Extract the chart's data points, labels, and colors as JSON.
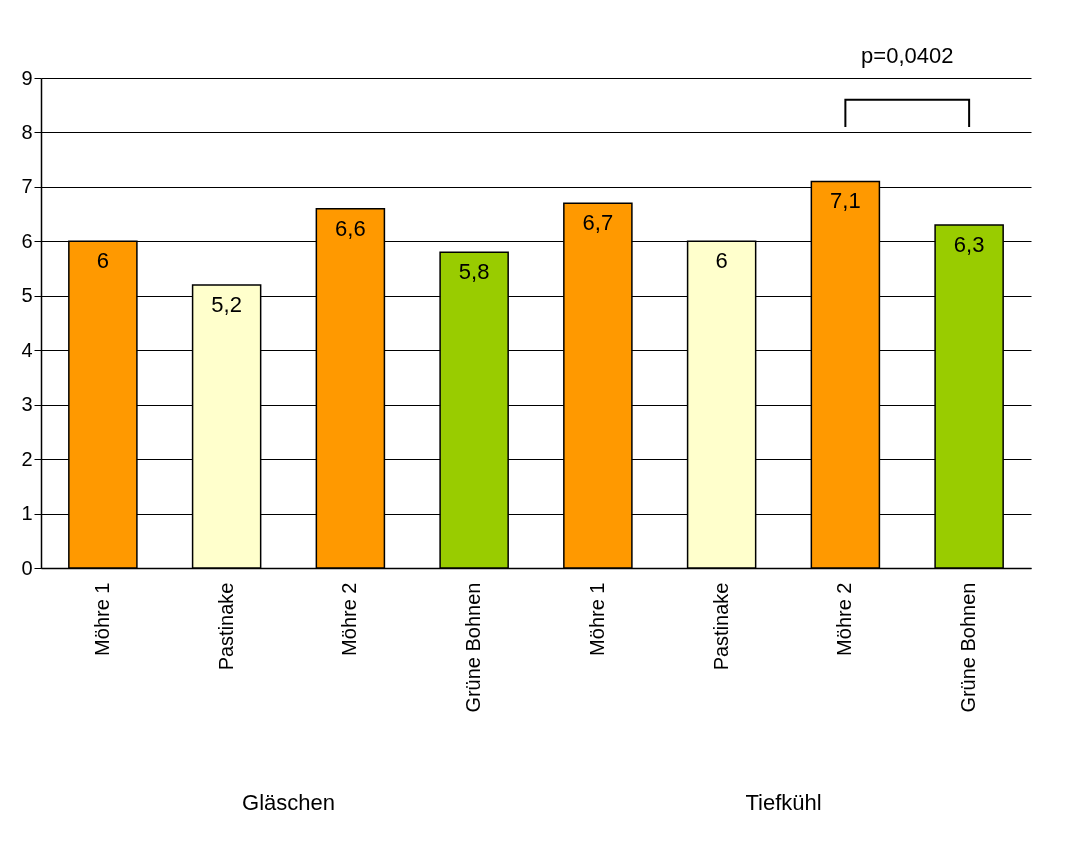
{
  "chart_data": {
    "type": "bar",
    "categories": [
      "Möhre 1",
      "Pastinake",
      "Möhre 2",
      "Grüne Bohnen",
      "Möhre 1",
      "Pastinake",
      "Möhre 2",
      "Grüne Bohnen"
    ],
    "values": [
      6,
      5.2,
      6.6,
      5.8,
      6.7,
      6,
      7.1,
      6.3
    ],
    "colors": [
      "#ff9900",
      "#ffffcc",
      "#ff9900",
      "#99cc00",
      "#ff9900",
      "#ffffcc",
      "#ff9900",
      "#99cc00"
    ],
    "value_labels": [
      "6",
      "5,2",
      "6,6",
      "5,8",
      "6,7",
      "6",
      "7,1",
      "6,3"
    ],
    "ylim": [
      0,
      9
    ],
    "yticks": [
      0,
      1,
      2,
      3,
      4,
      5,
      6,
      7,
      8,
      9
    ],
    "grid": "y",
    "annotations": [
      "p=0,0402",
      "Gläschen",
      "Tiefkühl"
    ]
  }
}
